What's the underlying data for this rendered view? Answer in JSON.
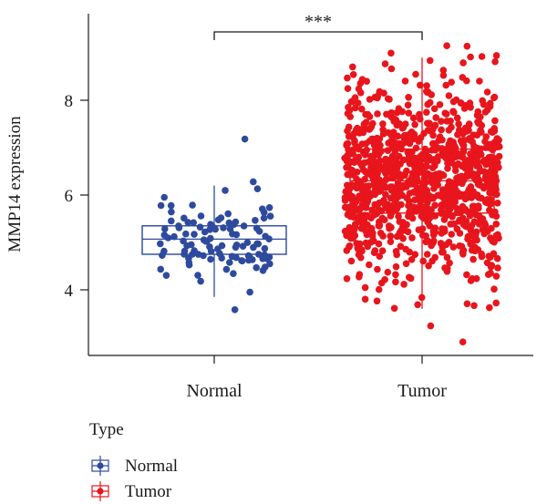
{
  "chart_data": {
    "type": "box",
    "ylabel": "MMP14 expression",
    "xlabel": "",
    "ylim": [
      2.75,
      9.4
    ],
    "yticks": [
      4,
      6,
      8
    ],
    "categories": [
      "Normal",
      "Tumor"
    ],
    "significance": {
      "between": [
        "Normal",
        "Tumor"
      ],
      "label": "***"
    },
    "legend": {
      "title": "Type",
      "position": "bottom-left",
      "entries": [
        "Normal",
        "Tumor"
      ]
    },
    "series": [
      {
        "name": "Normal",
        "color": "#2e4a9e",
        "box": {
          "min": 3.85,
          "q1": 4.75,
          "median": 5.07,
          "q3": 5.35,
          "max": 6.2
        },
        "points_count": 110,
        "points_range": [
          3.58,
          7.18
        ],
        "seed": 11
      },
      {
        "name": "Tumor",
        "color": "#e8151c",
        "box": {
          "min": 3.6,
          "q1": 5.62,
          "median": 6.3,
          "q3": 6.97,
          "max": 8.9
        },
        "points_count": 1100,
        "points_range": [
          2.9,
          9.15
        ],
        "seed": 29
      }
    ]
  }
}
